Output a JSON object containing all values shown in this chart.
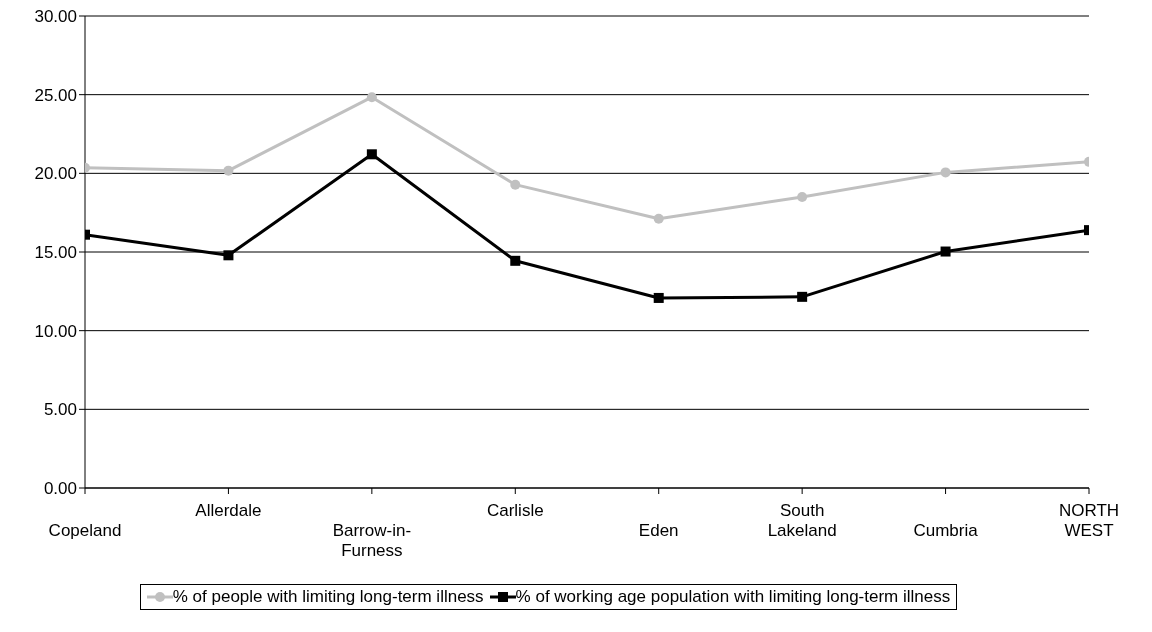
{
  "chart_data": {
    "type": "line",
    "categories": [
      "Copeland",
      "Allerdale",
      "Barrow-in-Furness",
      "Carlisle",
      "Eden",
      "South Lakeland",
      "Cumbria",
      "NORTH WEST"
    ],
    "series": [
      {
        "name": "% of people with limiting long-term illness",
        "color": "#c0c0c0",
        "marker": "circle",
        "values": [
          20.35,
          20.17,
          24.84,
          19.28,
          17.11,
          18.5,
          20.06,
          20.73
        ]
      },
      {
        "name": "% of working age population with limiting long-term illness",
        "color": "#000000",
        "marker": "square",
        "values": [
          16.1,
          14.79,
          21.21,
          14.44,
          12.08,
          12.15,
          15.03,
          16.39
        ]
      }
    ],
    "ylim": [
      0,
      30
    ],
    "yticks": [
      {
        "value": 0,
        "label": "0.00"
      },
      {
        "value": 5,
        "label": "5.00"
      },
      {
        "value": 10,
        "label": "10.00"
      },
      {
        "value": 15,
        "label": "15.00"
      },
      {
        "value": 20,
        "label": "20.00"
      },
      {
        "value": 25,
        "label": "25.00"
      },
      {
        "value": 30,
        "label": "30.00"
      }
    ],
    "grid": "y",
    "legend": "bottom"
  }
}
